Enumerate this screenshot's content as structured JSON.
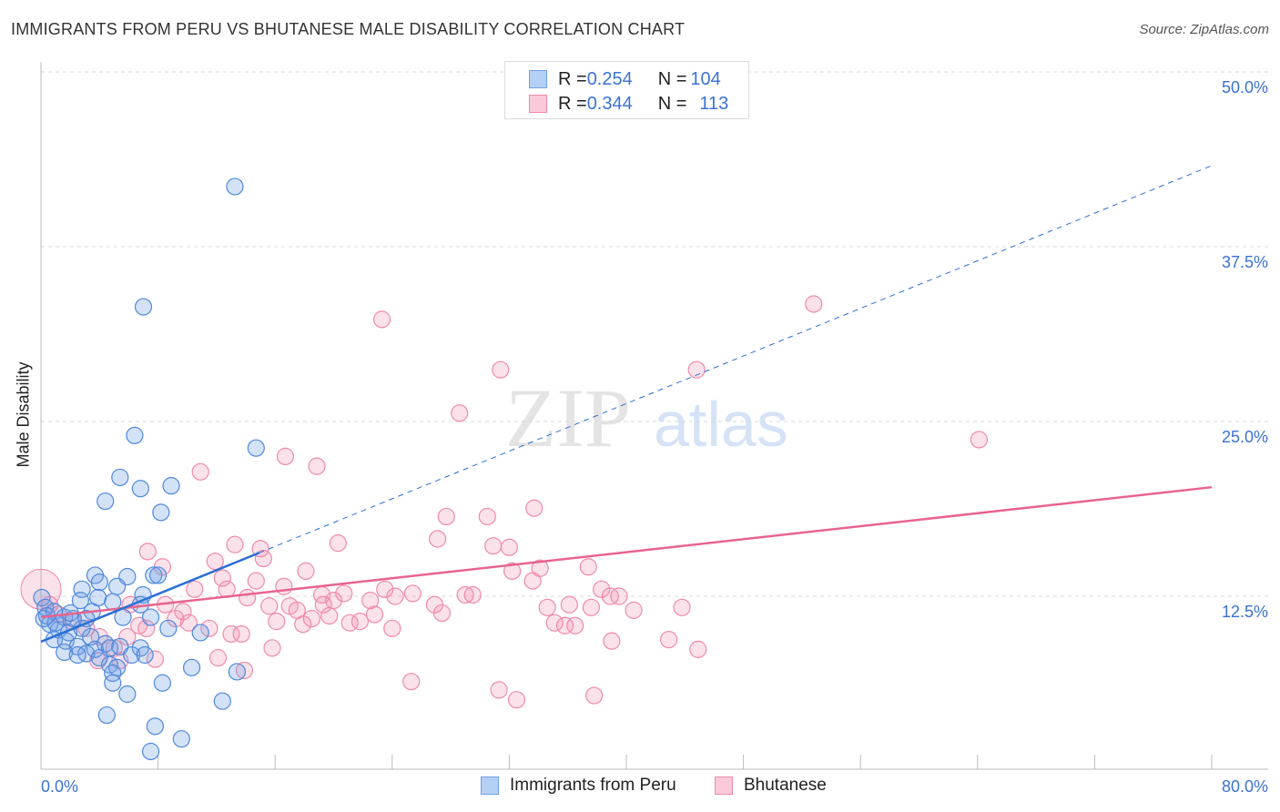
{
  "title": "IMMIGRANTS FROM PERU VS BHUTANESE MALE DISABILITY CORRELATION CHART",
  "source": "Source: ZipAtlas.com",
  "legend": {
    "r_label": "R = ",
    "n_label": "N = ",
    "series": [
      {
        "r": "0.254",
        "n": "104"
      },
      {
        "r": "0.344",
        "n": "113"
      }
    ]
  },
  "chart_data": {
    "type": "scatter",
    "title": "IMMIGRANTS FROM PERU VS BHUTANESE MALE DISABILITY CORRELATION CHART",
    "xlabel": "",
    "ylabel": "Male Disability",
    "xlim": [
      0,
      80
    ],
    "ylim": [
      0,
      50
    ],
    "x_tick_labels": [
      "0.0%",
      "80.0%"
    ],
    "y_tick_labels": [
      "12.5%",
      "25.0%",
      "37.5%",
      "50.0%"
    ],
    "y_ticks": [
      12.5,
      25,
      37.5,
      50
    ],
    "grid": true,
    "legend_placement": "top-center",
    "colors": {
      "blue": "#6fa0e6",
      "pink": "#f08aaa",
      "blue_line": "#2a6fd6",
      "pink_line": "#e8648f"
    },
    "series": [
      {
        "name": "Immigrants from Peru",
        "r": 0.254,
        "n": 104,
        "trend": {
          "x0": 0,
          "y0": 9.25,
          "x1": 14.9,
          "y1": 15.6,
          "dashed_to_x": 80,
          "dashed_to_y": 43.3
        },
        "points": [
          [
            13.25,
            41.8
          ],
          [
            7.0,
            33.2
          ],
          [
            6.4,
            24.0
          ],
          [
            14.7,
            23.1
          ],
          [
            5.4,
            21.0
          ],
          [
            6.8,
            20.2
          ],
          [
            8.9,
            20.4
          ],
          [
            4.4,
            19.3
          ],
          [
            8.2,
            18.5
          ],
          [
            3.7,
            14.0
          ],
          [
            5.9,
            13.9
          ],
          [
            7.7,
            14.0
          ],
          [
            8.0,
            14.0
          ],
          [
            4.0,
            13.5
          ],
          [
            2.8,
            13.0
          ],
          [
            5.2,
            13.2
          ],
          [
            6.97,
            12.6
          ],
          [
            2.7,
            12.2
          ],
          [
            3.9,
            12.4
          ],
          [
            4.9,
            12.1
          ],
          [
            0.06,
            12.4
          ],
          [
            6.8,
            11.9
          ],
          [
            3.5,
            11.4
          ],
          [
            0.3,
            11.7
          ],
          [
            0.9,
            11.4
          ],
          [
            1.6,
            11.0
          ],
          [
            2.2,
            10.9
          ],
          [
            3.1,
            10.9
          ],
          [
            5.6,
            11.0
          ],
          [
            7.5,
            11.0
          ],
          [
            8.7,
            10.2
          ],
          [
            10.9,
            9.9
          ],
          [
            0.6,
            10.5
          ],
          [
            1.2,
            10.1
          ],
          [
            1.9,
            9.9
          ],
          [
            2.8,
            10.2
          ],
          [
            3.4,
            9.6
          ],
          [
            4.4,
            9.1
          ],
          [
            0.9,
            9.4
          ],
          [
            1.7,
            9.3
          ],
          [
            2.5,
            8.9
          ],
          [
            3.7,
            8.7
          ],
          [
            4.7,
            8.8
          ],
          [
            5.4,
            8.9
          ],
          [
            6.8,
            8.8
          ],
          [
            1.6,
            8.5
          ],
          [
            3.1,
            8.4
          ],
          [
            4.0,
            8.1
          ],
          [
            2.5,
            8.3
          ],
          [
            6.2,
            8.3
          ],
          [
            7.1,
            8.3
          ],
          [
            4.7,
            7.6
          ],
          [
            5.2,
            7.4
          ],
          [
            4.9,
            7.0
          ],
          [
            10.3,
            7.4
          ],
          [
            13.4,
            7.1
          ],
          [
            4.9,
            6.3
          ],
          [
            8.3,
            6.3
          ],
          [
            5.9,
            5.5
          ],
          [
            12.4,
            5.0
          ],
          [
            4.5,
            4.0
          ],
          [
            7.8,
            3.2
          ],
          [
            9.6,
            2.3
          ],
          [
            7.5,
            1.4
          ],
          [
            0.2,
            10.9
          ],
          [
            1.0,
            10.6
          ],
          [
            2.0,
            11.3
          ],
          [
            0.4,
            11.1
          ]
        ]
      },
      {
        "name": "Bhutanese",
        "r": 0.344,
        "n": 113,
        "trend": {
          "x0": 0,
          "y0": 11.0,
          "x1": 80,
          "y1": 20.3
        },
        "points": [
          [
            52.8,
            33.4
          ],
          [
            23.3,
            32.3
          ],
          [
            31.4,
            28.7
          ],
          [
            44.8,
            28.7
          ],
          [
            28.6,
            25.6
          ],
          [
            64.1,
            23.7
          ],
          [
            16.7,
            22.5
          ],
          [
            18.85,
            21.8
          ],
          [
            10.9,
            21.4
          ],
          [
            33.7,
            18.8
          ],
          [
            27.7,
            18.2
          ],
          [
            30.5,
            18.2
          ],
          [
            27.1,
            16.6
          ],
          [
            20.3,
            16.3
          ],
          [
            13.25,
            16.2
          ],
          [
            30.9,
            16.1
          ],
          [
            32.0,
            16.0
          ],
          [
            15.0,
            15.9
          ],
          [
            7.3,
            15.7
          ],
          [
            15.2,
            15.2
          ],
          [
            11.9,
            15.0
          ],
          [
            8.3,
            14.6
          ],
          [
            34.1,
            14.5
          ],
          [
            37.4,
            14.6
          ],
          [
            18.1,
            14.3
          ],
          [
            32.2,
            14.3
          ],
          [
            12.4,
            13.8
          ],
          [
            33.6,
            13.6
          ],
          [
            14.7,
            13.6
          ],
          [
            10.5,
            13.0
          ],
          [
            12.7,
            13.0
          ],
          [
            16.6,
            13.2
          ],
          [
            23.5,
            13.0
          ],
          [
            38.3,
            13.0
          ],
          [
            25.4,
            12.7
          ],
          [
            29.0,
            12.6
          ],
          [
            29.5,
            12.6
          ],
          [
            38.9,
            12.5
          ],
          [
            39.5,
            12.5
          ],
          [
            20.7,
            12.7
          ],
          [
            14.1,
            12.4
          ],
          [
            19.2,
            12.6
          ],
          [
            8.5,
            11.9
          ],
          [
            9.7,
            11.4
          ],
          [
            6.1,
            11.9
          ],
          [
            15.6,
            11.8
          ],
          [
            17.5,
            11.5
          ],
          [
            19.3,
            11.9
          ],
          [
            17.0,
            11.8
          ],
          [
            20.0,
            12.2
          ],
          [
            22.5,
            12.2
          ],
          [
            24.2,
            12.5
          ],
          [
            26.9,
            11.9
          ],
          [
            27.4,
            11.3
          ],
          [
            34.6,
            11.7
          ],
          [
            36.1,
            11.9
          ],
          [
            37.6,
            11.7
          ],
          [
            40.5,
            11.5
          ],
          [
            43.8,
            11.7
          ],
          [
            9.2,
            10.9
          ],
          [
            10.1,
            10.6
          ],
          [
            16.1,
            10.7
          ],
          [
            17.9,
            10.5
          ],
          [
            18.5,
            10.9
          ],
          [
            19.7,
            11.1
          ],
          [
            21.1,
            10.6
          ],
          [
            21.8,
            10.7
          ],
          [
            22.8,
            11.2
          ],
          [
            24.0,
            10.2
          ],
          [
            35.1,
            10.6
          ],
          [
            35.8,
            10.4
          ],
          [
            36.5,
            10.4
          ],
          [
            6.7,
            10.4
          ],
          [
            7.2,
            10.2
          ],
          [
            11.5,
            10.2
          ],
          [
            13.0,
            9.8
          ],
          [
            13.7,
            9.8
          ],
          [
            39.0,
            9.3
          ],
          [
            42.9,
            9.4
          ],
          [
            15.8,
            8.8
          ],
          [
            44.9,
            8.7
          ],
          [
            12.1,
            8.1
          ],
          [
            7.8,
            8.0
          ],
          [
            13.9,
            7.2
          ],
          [
            25.3,
            6.4
          ],
          [
            31.3,
            5.8
          ],
          [
            32.5,
            5.1
          ],
          [
            37.8,
            5.4
          ],
          [
            0.6,
            11.9
          ],
          [
            1.2,
            11.2
          ],
          [
            2.2,
            10.7
          ],
          [
            3.1,
            10.2
          ],
          [
            4.0,
            9.6
          ],
          [
            5.0,
            8.8
          ],
          [
            5.4,
            7.9
          ],
          [
            3.9,
            7.9
          ],
          [
            5.9,
            9.6
          ]
        ]
      }
    ]
  }
}
